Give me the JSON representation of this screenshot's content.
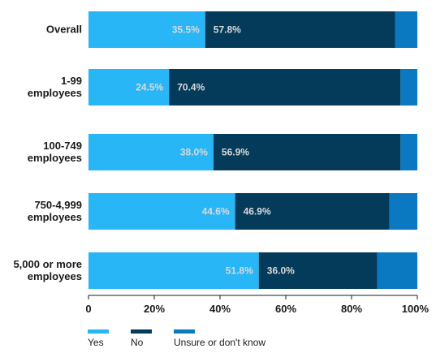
{
  "chart_data": {
    "type": "bar",
    "orientation": "horizontal",
    "stacked": true,
    "categories": [
      [
        "Overall"
      ],
      [
        "1-99",
        "employees"
      ],
      [
        "100-749",
        "employees"
      ],
      [
        "750-4,999",
        "employees"
      ],
      [
        "5,000 or more",
        "employees"
      ]
    ],
    "series": [
      {
        "name": "Yes",
        "values": [
          35.5,
          24.5,
          38.0,
          44.6,
          51.8
        ],
        "labels": [
          "35.5%",
          "24.5%",
          "38.0%",
          "44.6%",
          "51.8%"
        ]
      },
      {
        "name": "No",
        "values": [
          57.8,
          70.4,
          56.9,
          46.9,
          36.0
        ],
        "labels": [
          "57.8%",
          "70.4%",
          "56.9%",
          "46.9%",
          "36.0%"
        ]
      },
      {
        "name": "Unsure or don't know",
        "values": [
          6.7,
          5.1,
          5.1,
          8.5,
          12.2
        ]
      }
    ],
    "colors": [
      "#29b6f6",
      "#053b5a",
      "#0b78c2"
    ],
    "xlim": [
      0,
      100
    ],
    "xticks": [
      "0",
      "20%",
      "40%",
      "60%",
      "80%",
      "100%"
    ],
    "legend_position": "bottom-left",
    "grid": false
  }
}
